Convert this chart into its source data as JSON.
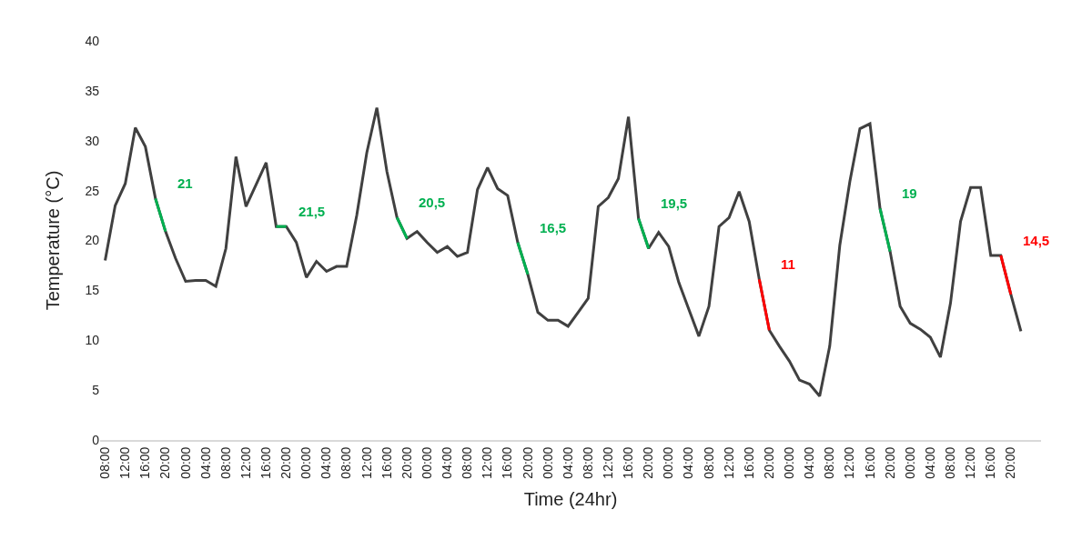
{
  "chart_data": {
    "type": "line",
    "xlabel": "Time (24hr)",
    "ylabel": "Temperature (°C)",
    "categories": [
      "08:00",
      null,
      "12:00",
      null,
      "16:00",
      null,
      "20:00",
      null,
      "00:00",
      null,
      "04:00",
      null,
      "08:00",
      null,
      "12:00",
      null,
      "16:00",
      null,
      "20:00",
      null,
      "00:00",
      null,
      "04:00",
      null,
      "08:00",
      null,
      "12:00",
      null,
      "16:00",
      null,
      "20:00",
      null,
      "00:00",
      null,
      "04:00",
      null,
      "08:00",
      null,
      "12:00",
      null,
      "16:00",
      null,
      "20:00",
      null,
      "00:00",
      null,
      "04:00",
      null,
      "08:00",
      null,
      "12:00",
      null,
      "16:00",
      null,
      "20:00",
      null,
      "00:00",
      null,
      "04:00",
      null,
      "08:00",
      null,
      "12:00",
      null,
      "16:00",
      null,
      "20:00",
      null,
      "00:00",
      null,
      "04:00",
      null,
      "08:00",
      null,
      "12:00",
      null,
      "16:00",
      null,
      "20:00",
      null,
      "00:00",
      null,
      "04:00",
      null,
      "08:00",
      null,
      "12:00",
      null,
      "16:00",
      null,
      "20:00",
      null
    ],
    "series": [
      {
        "color": "#404040",
        "values": [
          18,
          23.5,
          25.7,
          31.3,
          29.4,
          24.2,
          20.9,
          18.2,
          15.9,
          16,
          16,
          15.4,
          19.2,
          28.4,
          23.4,
          25.6,
          27.8,
          21.4,
          21.4,
          19.8,
          16.3,
          17.9,
          16.9,
          17.4,
          17.4,
          22.5,
          28.8,
          33.3,
          26.9,
          22.3,
          20.2,
          20.9,
          19.8,
          18.8,
          19.4,
          18.4,
          18.8,
          25.1,
          27.3,
          25.2,
          24.5,
          19.8,
          16.6,
          12.8,
          12,
          12,
          11.4,
          12.8,
          14.2,
          23.4,
          24.3,
          26.2,
          32.4,
          22.2,
          19.2,
          20.8,
          19.4,
          15.8,
          13.1,
          10.4,
          13.4,
          21.4,
          22.3,
          24.9,
          21.9,
          16.1,
          11,
          9.4,
          7.9,
          6,
          5.6,
          4.4,
          9.4,
          19.5,
          25.9,
          31.2,
          31.7,
          23.2,
          18.9,
          13.4,
          11.7,
          11.1,
          10.3,
          8.3,
          13.7,
          21.9,
          25.3,
          25.3,
          18.5,
          18.5,
          14.6,
          10.9
        ]
      },
      {
        "color": "#00b050",
        "values": [
          null,
          null,
          null,
          null,
          null,
          24.2,
          20.9,
          null,
          null,
          null,
          null,
          null,
          null,
          null,
          null,
          null,
          null,
          21.4,
          21.4,
          null,
          null,
          null,
          null,
          null,
          null,
          null,
          null,
          null,
          null,
          22.3,
          20.2,
          null,
          null,
          null,
          null,
          null,
          null,
          null,
          null,
          null,
          null,
          19.8,
          16.6,
          null,
          null,
          null,
          null,
          null,
          null,
          null,
          null,
          null,
          null,
          22.2,
          19.2,
          null,
          null,
          null,
          null,
          null,
          null,
          null,
          null,
          null,
          null,
          null,
          null,
          null,
          null,
          null,
          null,
          null,
          null,
          null,
          null,
          null,
          null,
          23.2,
          18.9,
          null,
          null,
          null,
          null,
          null,
          null,
          null,
          null,
          null,
          null,
          null,
          null,
          null
        ]
      },
      {
        "color": "#ff0000",
        "values": [
          null,
          null,
          null,
          null,
          null,
          null,
          null,
          null,
          null,
          null,
          null,
          null,
          null,
          null,
          null,
          null,
          null,
          null,
          null,
          null,
          null,
          null,
          null,
          null,
          null,
          null,
          null,
          null,
          null,
          null,
          null,
          null,
          null,
          null,
          null,
          null,
          null,
          null,
          null,
          null,
          null,
          null,
          null,
          null,
          null,
          null,
          null,
          null,
          null,
          null,
          null,
          null,
          null,
          null,
          null,
          null,
          null,
          null,
          null,
          null,
          null,
          null,
          null,
          null,
          null,
          16.1,
          11,
          null,
          null,
          null,
          null,
          null,
          null,
          null,
          null,
          null,
          null,
          null,
          null,
          null,
          null,
          null,
          null,
          null,
          null,
          null,
          null,
          null,
          null,
          18.5,
          14.6,
          null
        ]
      }
    ],
    "annotations": [
      "21",
      "21,5",
      "20,5",
      "16,5",
      "19,5",
      "11",
      "19",
      "14,5"
    ],
    "ylim": [
      0,
      40
    ],
    "yticks": [
      0,
      5,
      10,
      15,
      20,
      25,
      30,
      35,
      40
    ],
    "grid": false
  }
}
